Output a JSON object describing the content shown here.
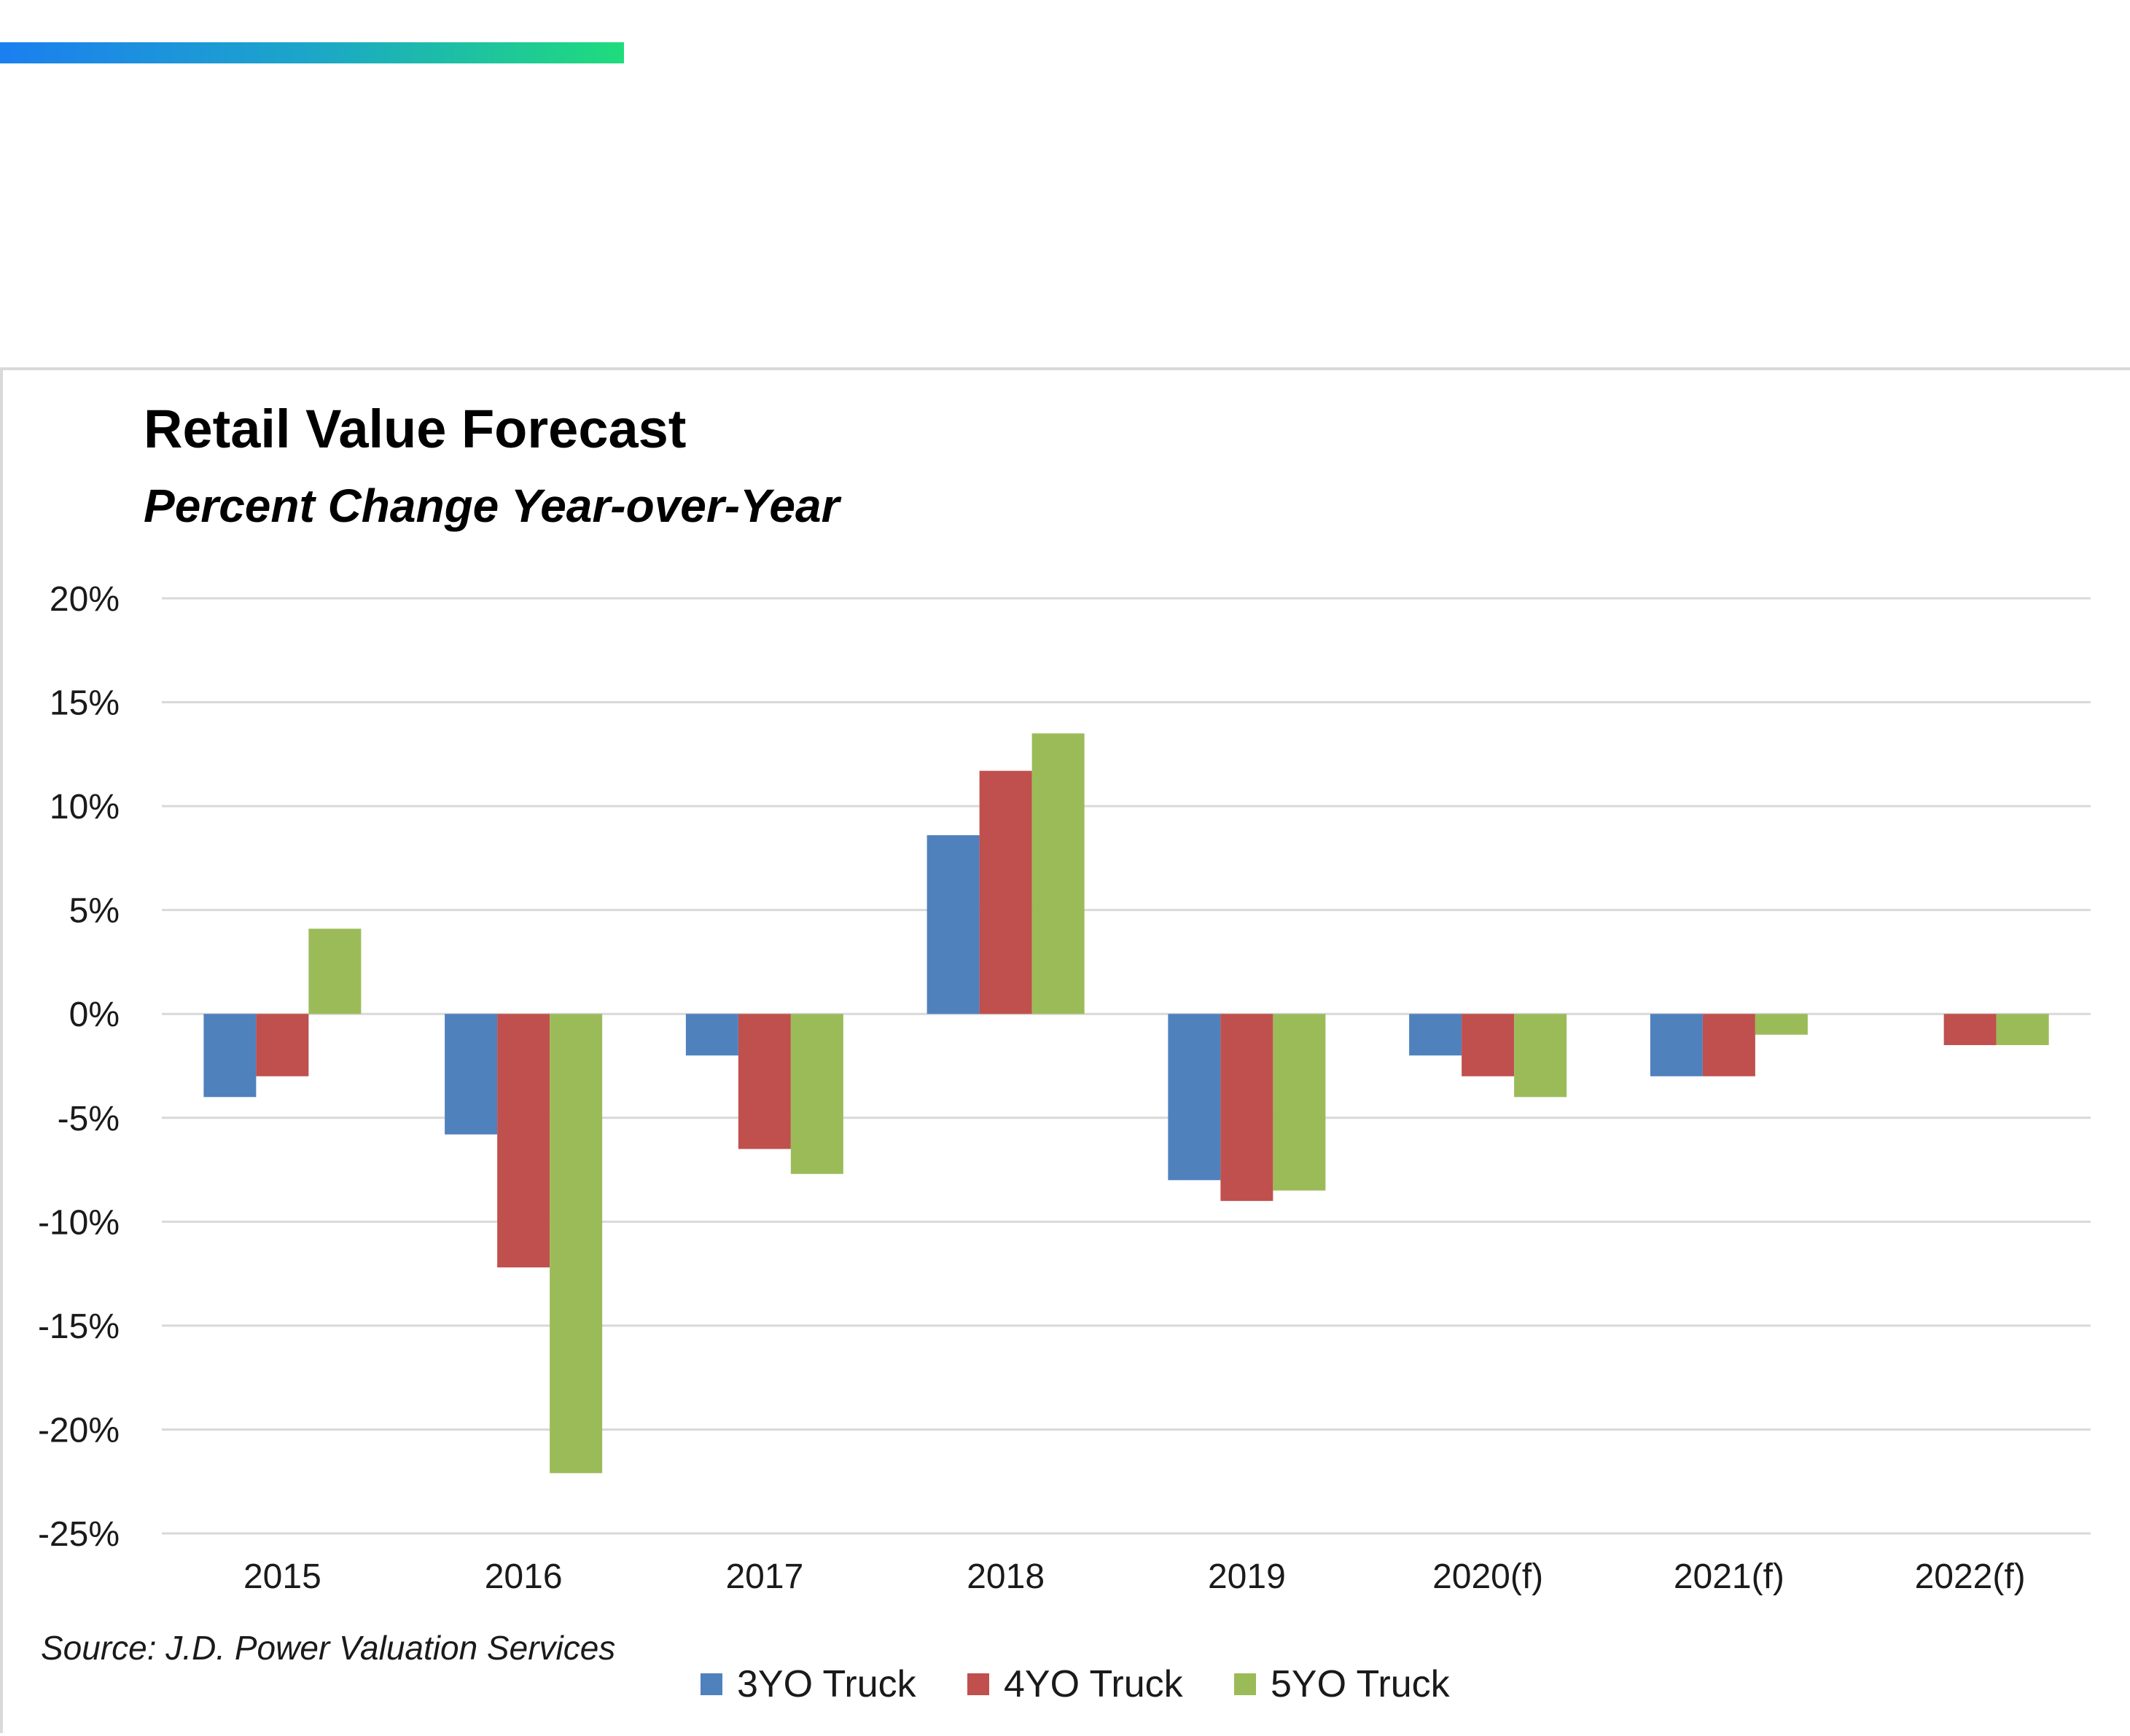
{
  "header": {
    "accent_colors": [
      "#1b7ff0",
      "#1fdc7c"
    ]
  },
  "chart_data": {
    "type": "bar",
    "title": "Retail Value Forecast",
    "subtitle": "Percent Change Year-over-Year",
    "categories": [
      "2015",
      "2016",
      "2017",
      "2018",
      "2019",
      "2020(f)",
      "2021(f)",
      "2022(f)"
    ],
    "series": [
      {
        "name": "3YO Truck",
        "color": "#4f81bd",
        "values": [
          -4.0,
          -5.8,
          -2.0,
          8.6,
          -8.0,
          -2.0,
          -3.0,
          0.0
        ]
      },
      {
        "name": "4YO Truck",
        "color": "#c0504d",
        "values": [
          -3.0,
          -12.2,
          -6.5,
          11.7,
          -9.0,
          -3.0,
          -3.0,
          -1.5
        ]
      },
      {
        "name": "5YO Truck",
        "color": "#9bbb59",
        "values": [
          4.1,
          -22.1,
          -7.7,
          13.5,
          -8.5,
          -4.0,
          -1.0,
          -1.5
        ]
      }
    ],
    "yticks": [
      "20%",
      "15%",
      "10%",
      "5%",
      "0%",
      "-5%",
      "-10%",
      "-15%",
      "-20%",
      "-25%"
    ],
    "ylim": [
      -25,
      20
    ],
    "grid": true,
    "legend_position": "bottom",
    "source_note": "Source: J.D. Power Valuation Services"
  }
}
